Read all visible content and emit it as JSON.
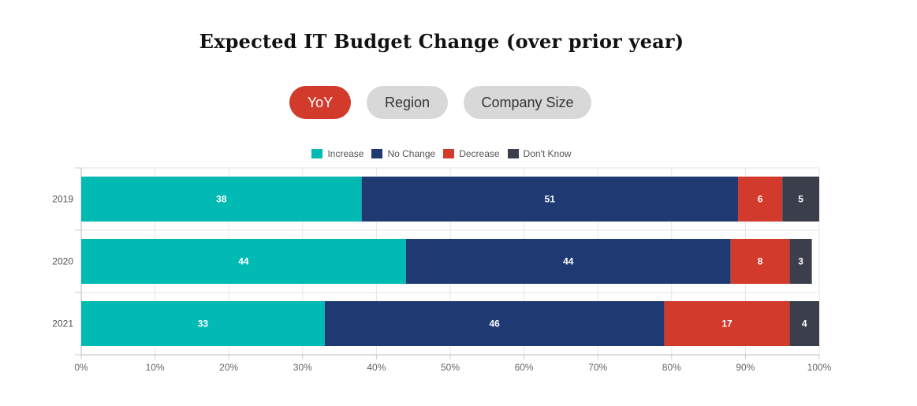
{
  "header": {
    "title": "Expected IT Budget Change (over prior year)"
  },
  "tabs": [
    {
      "label": "YoY",
      "active": true
    },
    {
      "label": "Region",
      "active": false
    },
    {
      "label": "Company Size",
      "active": false
    }
  ],
  "chart_data": {
    "type": "bar",
    "orientation": "horizontal",
    "stacked": true,
    "categories": [
      "2019",
      "2020",
      "2021"
    ],
    "series": [
      {
        "name": "Increase",
        "color": "#00bab3",
        "values": [
          38,
          44,
          33
        ]
      },
      {
        "name": "No Change",
        "color": "#1f3a73",
        "values": [
          51,
          44,
          46
        ]
      },
      {
        "name": "Decrease",
        "color": "#d23a2c",
        "values": [
          6,
          8,
          17
        ]
      },
      {
        "name": "Don't Know",
        "color": "#3b3f4b",
        "values": [
          5,
          3,
          4
        ]
      }
    ],
    "xlim": [
      0,
      100
    ],
    "xticks": [
      "0%",
      "10%",
      "20%",
      "30%",
      "40%",
      "50%",
      "60%",
      "70%",
      "80%",
      "90%",
      "100%"
    ],
    "grid": true,
    "legend_position": "top"
  }
}
